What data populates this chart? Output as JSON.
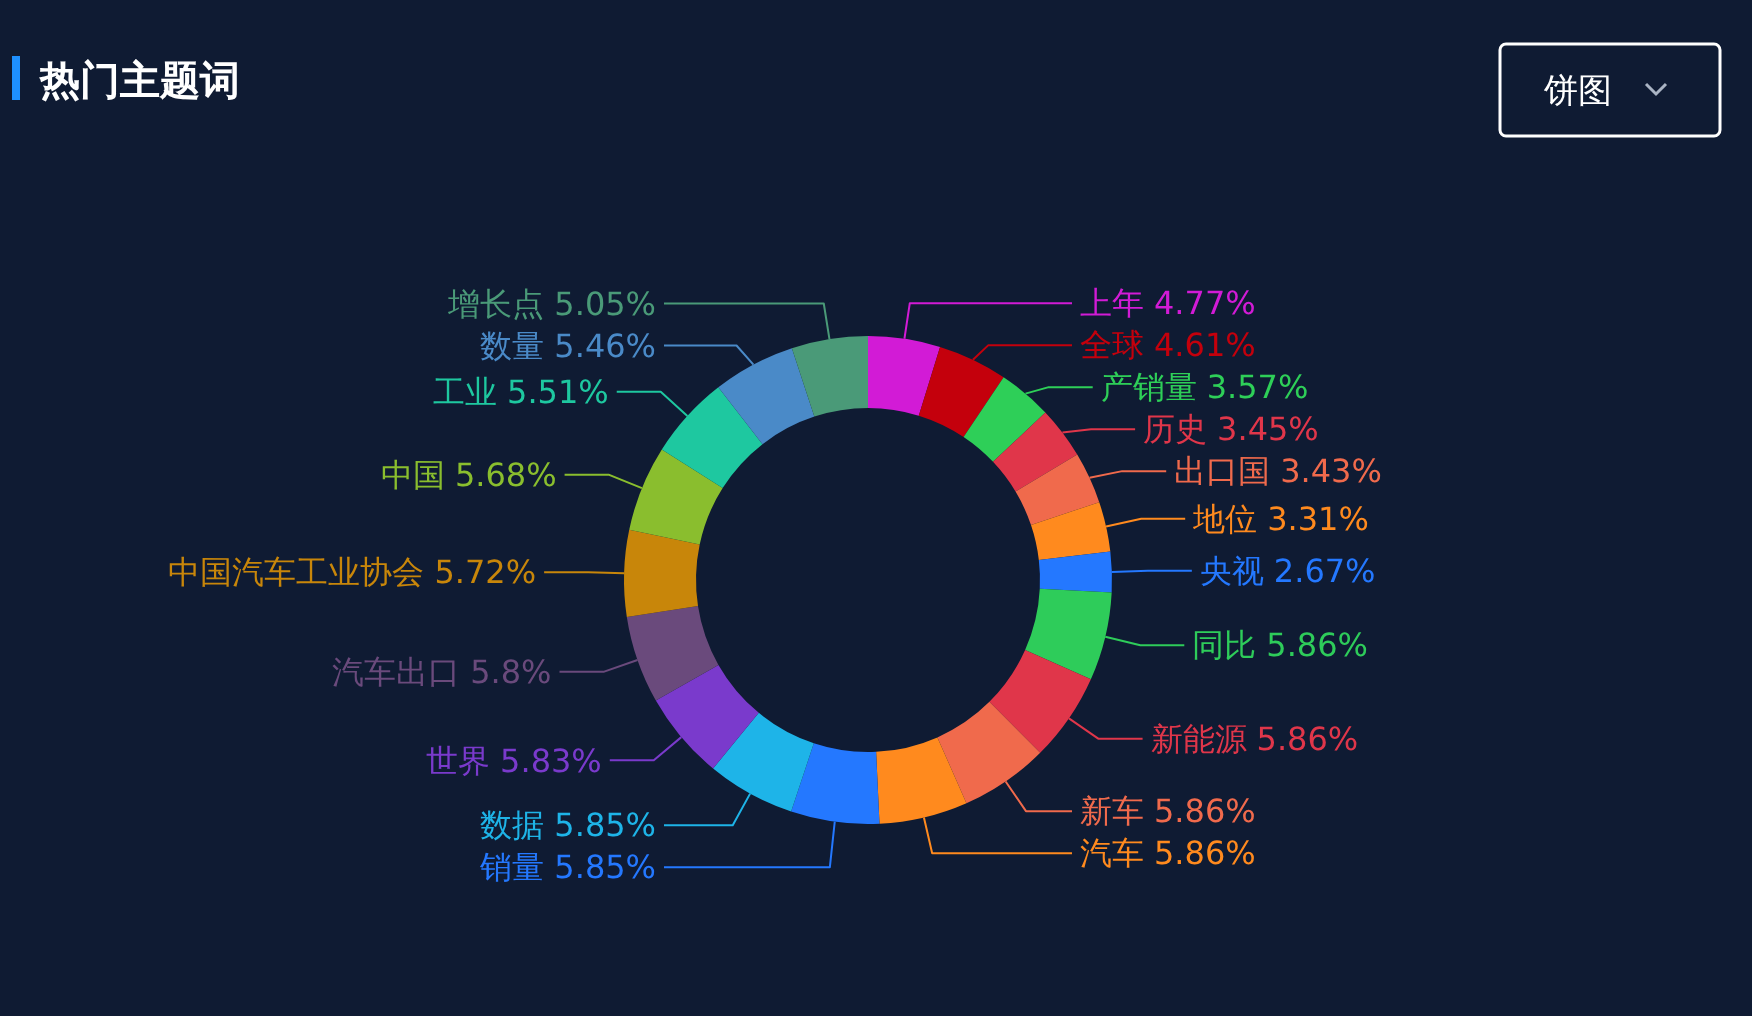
{
  "chart_data": {
    "type": "donut",
    "title": "热门主题词",
    "annotations": [
      "饼图"
    ],
    "value_labels": [
      "4.77%",
      "4.61%",
      "3.57%",
      "3.45%",
      "3.43%",
      "3.31%",
      "2.67%",
      "5.86%",
      "5.86%",
      "5.86%",
      "5.86%",
      "5.85%",
      "5.85%",
      "5.83%",
      "5.8%",
      "5.72%",
      "5.68%",
      "5.51%",
      "5.46%",
      "5.05%"
    ],
    "categories": [
      "上年",
      "全球",
      "产销量",
      "历史",
      "出口国",
      "地位",
      "央视",
      "同比",
      "新能源",
      "新车",
      "汽车",
      "销量",
      "数据",
      "世界",
      "汽车出口",
      "中国汽车工业协会",
      "中国",
      "工业",
      "数量",
      "增长点"
    ],
    "values": [
      4.77,
      4.61,
      3.57,
      3.45,
      3.43,
      3.31,
      2.67,
      5.86,
      5.86,
      5.86,
      5.86,
      5.85,
      5.85,
      5.83,
      5.8,
      5.72,
      5.68,
      5.51,
      5.46,
      5.05
    ],
    "colors": [
      "#d21bd6",
      "#c4000c",
      "#2ecf58",
      "#e0364a",
      "#f06a4c",
      "#ff8a1e",
      "#2478ff",
      "#2ecc5a",
      "#e0364a",
      "#f06a4c",
      "#ff8a1e",
      "#2478ff",
      "#1eb4e8",
      "#7a3acc",
      "#6a4a7c",
      "#c8860a",
      "#8abe2e",
      "#1ec8a0",
      "#4a8ac8",
      "#4a9a78"
    ]
  }
}
